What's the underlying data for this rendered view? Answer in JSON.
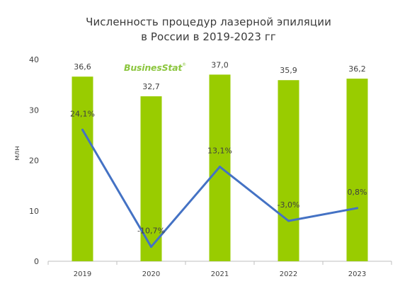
{
  "title_line1": "Численность процедур лазерной эпиляции",
  "title_line2": "в России в 2019-2023 гг",
  "logo": "BusinesStat",
  "colors": {
    "bar": "#99cc00",
    "line": "#4472c4",
    "axis": "#bfbfbf",
    "text": "#404040"
  },
  "chart_data": {
    "type": "bar",
    "title": "Численность процедур лазерной эпиляции в России в 2019-2023 гг",
    "categories": [
      "2019",
      "2020",
      "2021",
      "2022",
      "2023"
    ],
    "series": [
      {
        "type": "bar",
        "values": [
          36.6,
          32.7,
          37.0,
          35.9,
          36.2
        ],
        "labels": [
          "36,6",
          "32,7",
          "37,0",
          "35,9",
          "36,2"
        ]
      },
      {
        "type": "line",
        "values": [
          24.1,
          -10.7,
          13.1,
          -3.0,
          0.8
        ],
        "labels": [
          "24,1%",
          "-10,7%",
          "13,1%",
          "-3,0%",
          "0,8%"
        ]
      }
    ],
    "ylabel": "млн",
    "ylim": [
      0,
      40
    ],
    "yticks": [
      0,
      10,
      20,
      30,
      40
    ],
    "y2lim": [
      -15,
      45
    ],
    "grid": false
  }
}
